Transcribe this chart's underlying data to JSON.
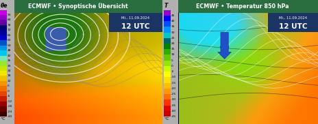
{
  "fig_width": 4.65,
  "fig_height": 1.82,
  "dpi": 100,
  "background": "#b0b0b0",
  "left_panel": {
    "title": "ECMWF • Synoptische Übersicht",
    "title_color": "white",
    "title_bg": "#2a6e3f",
    "date_text": "Mi., 11.09.2024",
    "time_text": "12 UTC",
    "date_bg": "#1a3464",
    "colorbar_label": "θe",
    "colorbar_unit": "°C",
    "colorbar_ticks": [
      90,
      84,
      78,
      72,
      66,
      60,
      54,
      48,
      42,
      36,
      30,
      24,
      18,
      12,
      6,
      0,
      -6,
      -12,
      -18,
      -24,
      -30
    ],
    "colorbar_colors": [
      "#c800e6",
      "#9600c8",
      "#6400a0",
      "#00006e",
      "#000096",
      "#0000c8",
      "#0050c8",
      "#0096e6",
      "#00c8f0",
      "#78e6b4",
      "#96e632",
      "#c8e600",
      "#f0e600",
      "#f0be00",
      "#f09600",
      "#f06e00",
      "#e64600",
      "#c81e00",
      "#960000",
      "#640000",
      "#3c0000"
    ]
  },
  "right_panel": {
    "title": "ECMWF • Temperatur 850 hPa",
    "title_color": "white",
    "title_bg": "#2a6e3f",
    "date_text": "Mi., 11.09.2024",
    "time_text": "12 UTC",
    "date_bg": "#1a3464",
    "colorbar_label": "T",
    "colorbar_unit": "°C",
    "colorbar_ticks": [
      45,
      40,
      35,
      30,
      25,
      20,
      15,
      10,
      5,
      0,
      -5,
      -10,
      -15,
      -20,
      -25,
      -30,
      -35,
      -40,
      -45
    ],
    "colorbar_colors": [
      "#9600c8",
      "#0000ff",
      "#0050ff",
      "#0096ff",
      "#00c8c8",
      "#006464",
      "#008200",
      "#32aa00",
      "#64c800",
      "#96e600",
      "#c8ff00",
      "#ffff00",
      "#ffe100",
      "#ffbe00",
      "#ff9b00",
      "#ff6e00",
      "#ff3200",
      "#e60000",
      "#c80000"
    ]
  }
}
